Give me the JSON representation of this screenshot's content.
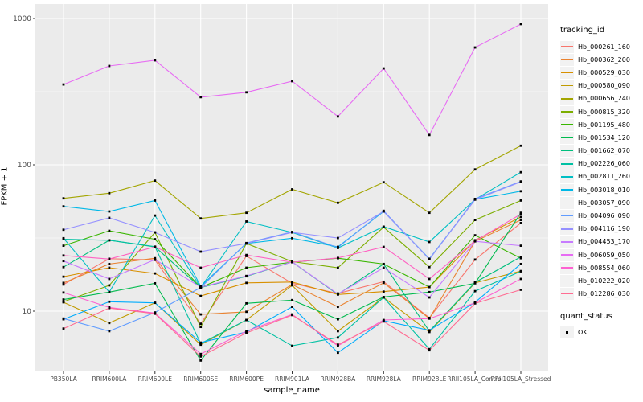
{
  "chart_data": {
    "type": "line",
    "title": "",
    "xlabel": "sample_name",
    "ylabel": "FPKM + 1",
    "y_scale": "log10",
    "ylim": [
      3.9,
      1250
    ],
    "y_major_ticks": [
      10,
      100,
      1000
    ],
    "y_tick_labels": [
      "10",
      "100",
      "1000"
    ],
    "y_minor_gridlines": [
      31.62,
      316.2
    ],
    "grid": "on",
    "panel_bg": "#EBEBEB",
    "grid_color": "#FFFFFF",
    "point_color": "#000000",
    "point_shape": "square",
    "legend_position": "right",
    "categories": [
      "PB350LA",
      "RRIM600LA",
      "RRIM600LE",
      "RRIM600SE",
      "RRIM600PE",
      "RRIM901LA",
      "RRIM928BA",
      "RRIM928LA",
      "RRIM928LE",
      "RRII105LA_Control",
      "RRII105LA_Stressed"
    ],
    "series": [
      {
        "name": "Hb_000261_160",
        "color": "#F8766D",
        "values": [
          15.2,
          22.8,
          22.4,
          8.2,
          23.8,
          15.5,
          13.2,
          15.9,
          9.0,
          22.5,
          40
        ]
      },
      {
        "name": "Hb_000362_200",
        "color": "#EA8331",
        "values": [
          15.6,
          21.0,
          23.0,
          9.5,
          9.9,
          15.2,
          10.7,
          15.6,
          8.9,
          30.0,
          42
        ]
      },
      {
        "name": "Hb_000529_030",
        "color": "#D89000",
        "values": [
          17.2,
          19.8,
          18.1,
          12.7,
          15.6,
          15.8,
          13.0,
          13.6,
          14.6,
          30.5,
          44
        ]
      },
      {
        "name": "Hb_000580_090",
        "color": "#C09B00",
        "values": [
          11.5,
          8.3,
          11.4,
          5.9,
          8.7,
          15.0,
          7.3,
          12.4,
          7.2,
          15.6,
          18.8
        ]
      },
      {
        "name": "Hb_000656_240",
        "color": "#A3A500",
        "values": [
          59,
          64,
          78,
          43,
          47,
          68,
          55,
          76,
          47,
          93,
          135
        ]
      },
      {
        "name": "Hb_000815_320",
        "color": "#7CAE00",
        "values": [
          11.6,
          15.0,
          34.5,
          7.8,
          29.0,
          21.8,
          19.8,
          37.5,
          20.0,
          42,
          57
        ]
      },
      {
        "name": "Hb_001195_480",
        "color": "#39B600",
        "values": [
          28,
          35.4,
          31,
          14.5,
          19.8,
          21.6,
          23.0,
          21.0,
          14.6,
          33,
          23
        ]
      },
      {
        "name": "Hb_001534_120",
        "color": "#00BB4E",
        "values": [
          12.0,
          13.5,
          15.5,
          4.6,
          11.3,
          11.9,
          8.8,
          12.5,
          13.5,
          15.5,
          47
        ]
      },
      {
        "name": "Hb_001662_070",
        "color": "#00BF7D",
        "values": [
          20,
          30.5,
          27.5,
          14.5,
          17.3,
          21.7,
          13.0,
          21.0,
          7.3,
          15.7,
          23.5
        ]
      },
      {
        "name": "Hb_002226_060",
        "color": "#00C1A3",
        "values": [
          31,
          30.5,
          27.6,
          6.0,
          8.7,
          5.8,
          6.6,
          12.4,
          5.5,
          13.7,
          18.7
        ]
      },
      {
        "name": "Hb_002811_260",
        "color": "#00BFC4",
        "values": [
          31.5,
          13.5,
          45.0,
          14.5,
          41,
          34.5,
          27.0,
          37.8,
          29.7,
          58,
          89
        ]
      },
      {
        "name": "Hb_003018_010",
        "color": "#00B8E7",
        "values": [
          52,
          48,
          57,
          14.8,
          29,
          31.5,
          27.5,
          48,
          22.8,
          58,
          66
        ]
      },
      {
        "name": "Hb_003057_090",
        "color": "#00ACFC",
        "values": [
          8.8,
          11.6,
          11.4,
          6.1,
          7.2,
          10.7,
          5.2,
          8.6,
          7.4,
          11.5,
          21
        ]
      },
      {
        "name": "Hb_004096_090",
        "color": "#619CFF",
        "values": [
          8.9,
          7.3,
          9.8,
          14.5,
          29.2,
          34.8,
          27.2,
          48.5,
          22.6,
          58.5,
          77
        ]
      },
      {
        "name": "Hb_004116_190",
        "color": "#9590FF",
        "values": [
          36,
          43.4,
          34.5,
          25.5,
          29.0,
          34.5,
          31.6,
          48.0,
          22.7,
          57.8,
          76.5
        ]
      },
      {
        "name": "Hb_004453_170",
        "color": "#C77CFF",
        "values": [
          22,
          16.6,
          22.5,
          14.6,
          17.4,
          21.7,
          13.1,
          19.8,
          12.4,
          30,
          28
        ]
      },
      {
        "name": "Hb_006059_050",
        "color": "#E76BF3",
        "values": [
          354,
          474,
          518,
          290,
          313,
          373,
          214,
          456,
          160,
          634,
          916
        ]
      },
      {
        "name": "Hb_008554_060",
        "color": "#FD61D1",
        "values": [
          13.4,
          10.6,
          9.7,
          5.1,
          7.3,
          9.5,
          5.8,
          8.7,
          8.9,
          11.4,
          16.6
        ]
      },
      {
        "name": "Hb_010222_020",
        "color": "#FF61C2",
        "values": [
          24,
          22.7,
          27.5,
          19.8,
          24.2,
          21.6,
          23.1,
          27.5,
          16.6,
          30.2,
          46
        ]
      },
      {
        "name": "Hb_012286_030",
        "color": "#FF6C92",
        "values": [
          7.6,
          10.5,
          9.6,
          4.9,
          7.1,
          9.4,
          5.9,
          8.5,
          5.4,
          11.3,
          14
        ]
      }
    ]
  },
  "legend": {
    "tracking_title": "tracking_id",
    "quant_title": "quant_status",
    "quant_items": [
      {
        "label": "OK"
      }
    ]
  }
}
